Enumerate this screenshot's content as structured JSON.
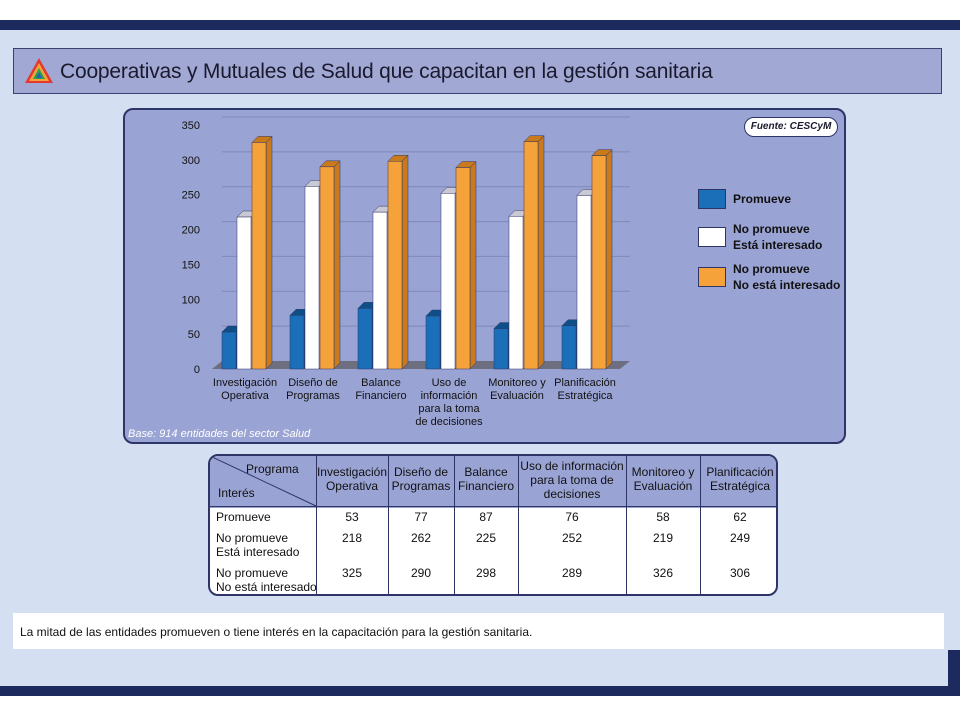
{
  "title": "Cooperativas y Mutuales de Salud que capacitan en la gestión sanitaria",
  "source": "Fuente: CESCyM",
  "base_note": "Base: 914 entidades del sector Salud",
  "bottom_note": "La mitad de las entidades promueven o tiene interés en la capacitación para la gestión sanitaria.",
  "colors": {
    "promueve": "#1a6fb8",
    "no_promueve_interesado": "#ffffff",
    "no_promueve_no_interesado": "#f5a23a",
    "panel": "#9aa4d4",
    "border": "#2e3566"
  },
  "chart_data": {
    "type": "bar",
    "title": "",
    "xlabel": "",
    "ylabel": "",
    "ylim": [
      0,
      350
    ],
    "yticks": [
      "0",
      "50",
      "100",
      "150",
      "200",
      "250",
      "300",
      "350"
    ],
    "categories": [
      [
        "Investigación",
        "Operativa"
      ],
      [
        "Diseño de",
        "Programas"
      ],
      [
        "Balance",
        "Financiero"
      ],
      [
        "Uso de",
        "información",
        "para la toma",
        "de decisiones"
      ],
      [
        "Monitoreo y",
        "Evaluación"
      ],
      [
        "Planificación",
        "Estratégica"
      ]
    ],
    "legend_position": "right",
    "legend": [
      [
        "Promueve"
      ],
      [
        "No promueve",
        "Está interesado"
      ],
      [
        "No promueve",
        "No está interesado"
      ]
    ],
    "series": [
      {
        "name": "Promueve",
        "values": [
          53,
          77,
          87,
          76,
          58,
          62
        ]
      },
      {
        "name": "No promueve Está interesado",
        "values": [
          218,
          262,
          225,
          252,
          219,
          249
        ]
      },
      {
        "name": "No promueve No está interesado",
        "values": [
          325,
          290,
          298,
          289,
          326,
          306
        ]
      }
    ]
  },
  "table": {
    "corner_top": "Programa",
    "corner_bottom": "Interés",
    "columns": [
      [
        "Investigación",
        "Operativa"
      ],
      [
        "Diseño de",
        "Programas"
      ],
      [
        "Balance",
        "Financiero"
      ],
      [
        "Uso de información",
        "para la toma de",
        "decisiones"
      ],
      [
        "Monitoreo y",
        "Evaluación"
      ],
      [
        "Planificación",
        "Estratégica"
      ]
    ],
    "rows": [
      {
        "label": [
          "Promueve"
        ],
        "values": [
          "53",
          "77",
          "87",
          "76",
          "58",
          "62"
        ]
      },
      {
        "label": [
          "No promueve",
          "Está interesado"
        ],
        "values": [
          "218",
          "262",
          "225",
          "252",
          "219",
          "249"
        ]
      },
      {
        "label": [
          "No promueve",
          "No está interesado"
        ],
        "values": [
          "325",
          "290",
          "298",
          "289",
          "326",
          "306"
        ]
      }
    ]
  }
}
